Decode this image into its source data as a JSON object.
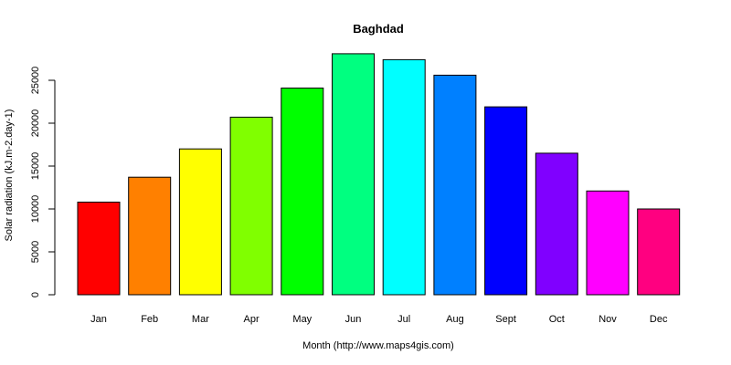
{
  "chart_data": {
    "type": "bar",
    "title": "Baghdad",
    "xlabel": "Month (http://www.maps4gis.com)",
    "ylabel": "Solar radiation (kJ.m-2.day-1)",
    "ylim": [
      0,
      27500
    ],
    "yticks": [
      0,
      5000,
      10000,
      15000,
      20000,
      25000
    ],
    "categories": [
      "Jan",
      "Feb",
      "Mar",
      "Apr",
      "May",
      "Jun",
      "Jul",
      "Aug",
      "Sept",
      "Oct",
      "Nov",
      "Dec"
    ],
    "values": [
      10800,
      13700,
      17000,
      20700,
      24100,
      28100,
      27400,
      25600,
      21900,
      16500,
      12100,
      10000
    ],
    "colors": [
      "#ff0000",
      "#ff8000",
      "#ffff00",
      "#80ff00",
      "#00ff00",
      "#00ff80",
      "#00ffff",
      "#0080ff",
      "#0000ff",
      "#8000ff",
      "#ff00ff",
      "#ff0080"
    ],
    "grid": false,
    "legend": "none"
  }
}
